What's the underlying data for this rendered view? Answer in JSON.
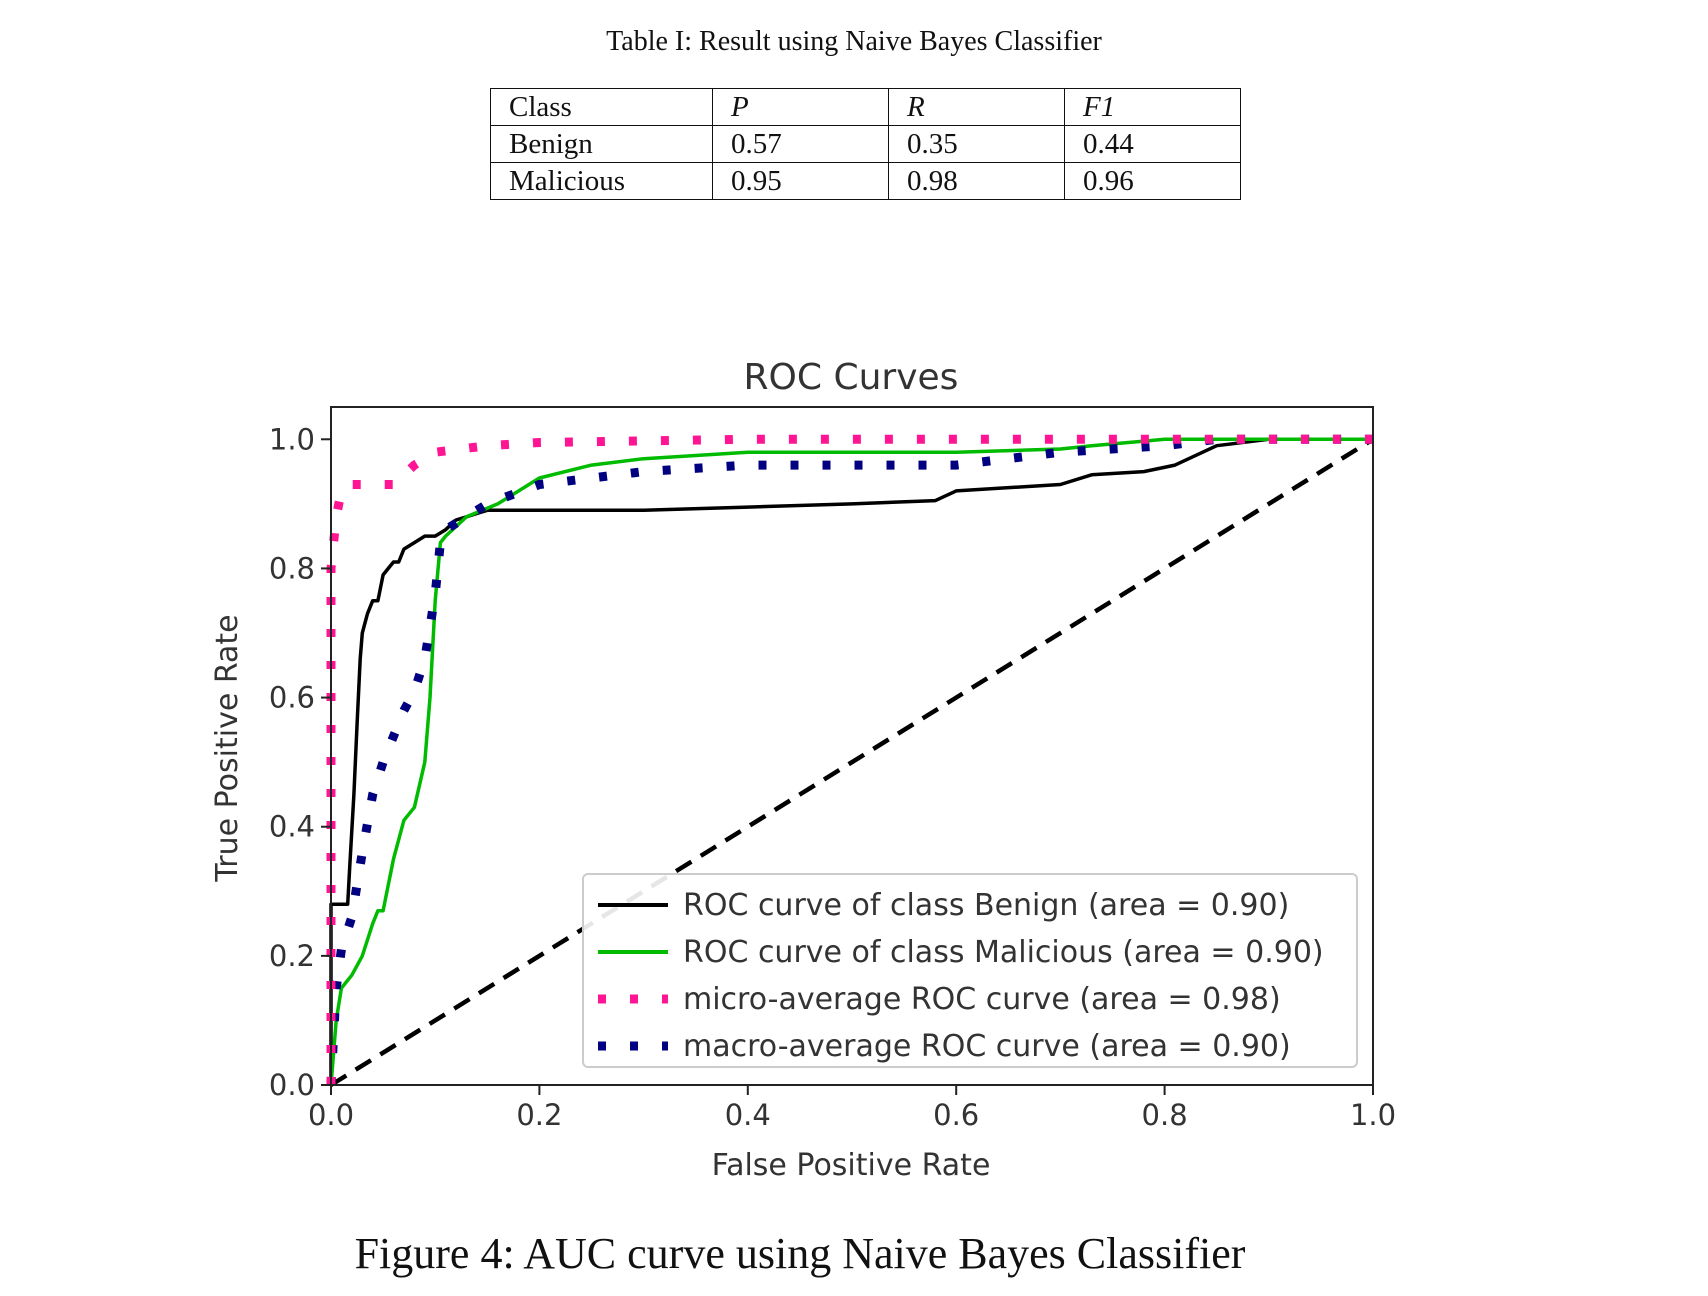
{
  "table": {
    "caption": "Table I: Result using Naive Bayes Classifier",
    "headers": [
      "Class",
      "P",
      "R",
      "F1"
    ],
    "rows": [
      [
        "Benign",
        "0.57",
        "0.35",
        "0.44"
      ],
      [
        "Malicious",
        "0.95",
        "0.98",
        "0.96"
      ]
    ]
  },
  "figure": {
    "caption": "Figure 4: AUC curve using Naive Bayes Classifier"
  },
  "chart_data": {
    "type": "line",
    "title": "ROC Curves",
    "xlabel": "False Positive Rate",
    "ylabel": "True Positive Rate",
    "xlim": [
      0,
      1
    ],
    "ylim": [
      0,
      1.05
    ],
    "xticks": [
      "0.0",
      "0.2",
      "0.4",
      "0.6",
      "0.8",
      "1.0"
    ],
    "yticks": [
      "0.0",
      "0.2",
      "0.4",
      "0.6",
      "0.8",
      "1.0"
    ],
    "grid": false,
    "legend_position": "lower right",
    "series": [
      {
        "name": "ROC curve of class Benign (area = 0.90)",
        "color": "#000000",
        "style": "solid",
        "x": [
          0,
          0,
          0.01,
          0.016,
          0.018,
          0.022,
          0.025,
          0.028,
          0.03,
          0.035,
          0.04,
          0.045,
          0.05,
          0.055,
          0.06,
          0.065,
          0.07,
          0.08,
          0.09,
          0.1,
          0.11,
          0.12,
          0.13,
          0.14,
          0.15,
          0.16,
          0.2,
          0.3,
          0.4,
          0.5,
          0.58,
          0.6,
          0.7,
          0.73,
          0.78,
          0.81,
          0.85,
          0.9,
          1
        ],
        "y": [
          0,
          0.28,
          0.28,
          0.28,
          0.34,
          0.45,
          0.56,
          0.66,
          0.7,
          0.73,
          0.75,
          0.75,
          0.79,
          0.8,
          0.81,
          0.81,
          0.83,
          0.84,
          0.85,
          0.85,
          0.86,
          0.875,
          0.88,
          0.885,
          0.89,
          0.89,
          0.89,
          0.89,
          0.895,
          0.9,
          0.905,
          0.92,
          0.93,
          0.945,
          0.95,
          0.96,
          0.99,
          1,
          1
        ]
      },
      {
        "name": "ROC curve of class Malicious (area = 0.90)",
        "color": "#00bb00",
        "style": "solid",
        "x": [
          0,
          0.005,
          0.01,
          0.02,
          0.03,
          0.04,
          0.045,
          0.05,
          0.06,
          0.07,
          0.08,
          0.09,
          0.095,
          0.1,
          0.105,
          0.11,
          0.13,
          0.16,
          0.2,
          0.25,
          0.3,
          0.4,
          0.6,
          0.7,
          0.73,
          0.8,
          0.85,
          1
        ],
        "y": [
          0,
          0.1,
          0.15,
          0.17,
          0.2,
          0.25,
          0.27,
          0.27,
          0.35,
          0.41,
          0.43,
          0.5,
          0.6,
          0.75,
          0.84,
          0.85,
          0.88,
          0.9,
          0.94,
          0.96,
          0.97,
          0.98,
          0.98,
          0.985,
          0.99,
          1,
          1,
          1
        ]
      },
      {
        "name": "micro-average ROC curve (area = 0.98)",
        "color": "#ff1493",
        "style": "dotted",
        "x": [
          0,
          0,
          0.005,
          0.01,
          0.02,
          0.03,
          0.06,
          0.08,
          0.1,
          0.15,
          0.2,
          0.4,
          1
        ],
        "y": [
          0,
          0.8,
          0.88,
          0.92,
          0.93,
          0.93,
          0.93,
          0.96,
          0.98,
          0.99,
          0.995,
          1,
          1
        ]
      },
      {
        "name": "macro-average ROC curve (area = 0.90)",
        "color": "#000080",
        "style": "dotted",
        "x": [
          0,
          0.005,
          0.01,
          0.02,
          0.03,
          0.04,
          0.05,
          0.06,
          0.07,
          0.08,
          0.09,
          0.1,
          0.105,
          0.11,
          0.15,
          0.2,
          0.3,
          0.4,
          0.5,
          0.6,
          0.7,
          0.8,
          0.85,
          1
        ],
        "y": [
          0,
          0.15,
          0.21,
          0.26,
          0.36,
          0.45,
          0.5,
          0.54,
          0.58,
          0.61,
          0.66,
          0.76,
          0.84,
          0.86,
          0.9,
          0.93,
          0.95,
          0.96,
          0.96,
          0.96,
          0.98,
          0.99,
          1,
          1
        ]
      },
      {
        "name": "",
        "color": "#000000",
        "style": "dashed",
        "x": [
          0,
          1
        ],
        "y": [
          0,
          1
        ]
      }
    ]
  }
}
